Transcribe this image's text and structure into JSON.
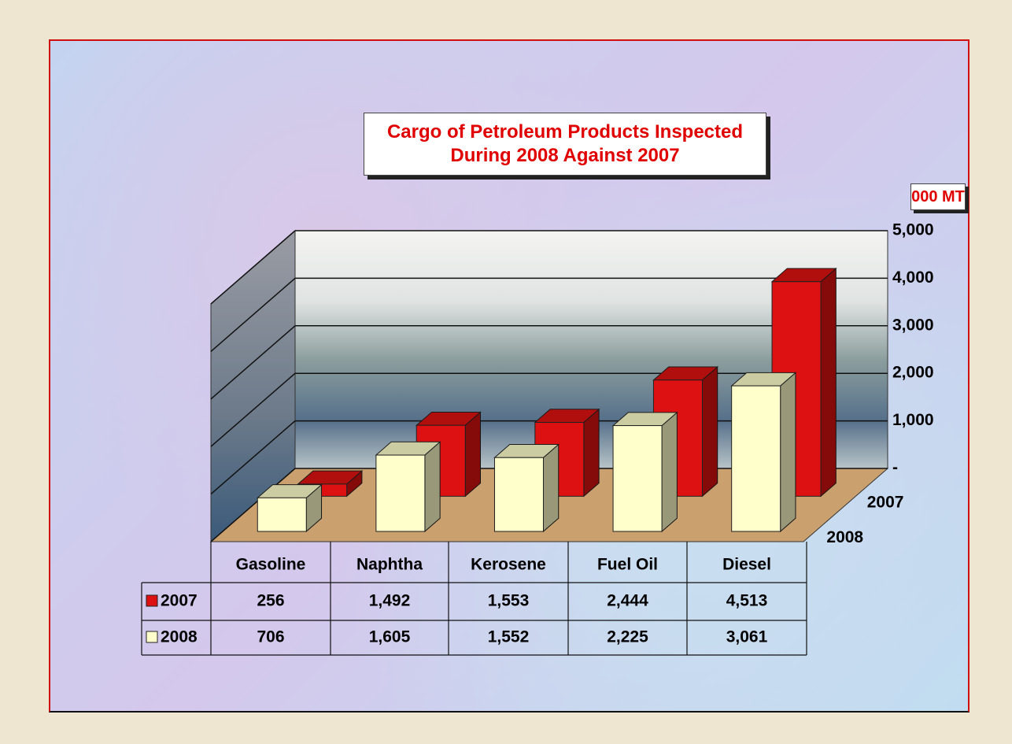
{
  "chart_data": {
    "type": "bar3d",
    "title": "Cargo of Petroleum Products Inspected During 2008 Against 2007",
    "y_label": "000 MT",
    "categories": [
      "Gasoline",
      "Naphtha",
      "Kerosene",
      "Fuel Oil",
      "Diesel"
    ],
    "series": [
      {
        "name": "2007",
        "color": "#dd1111",
        "values": [
          256,
          1492,
          1553,
          2444,
          4513
        ],
        "value_labels": [
          "256",
          "1,492",
          "1,553",
          "2,444",
          "4,513"
        ]
      },
      {
        "name": "2008",
        "color": "#ffffcc",
        "values": [
          706,
          1605,
          1552,
          2225,
          3061
        ],
        "value_labels": [
          "706",
          "1,605",
          "1,552",
          "2,225",
          "3,061"
        ]
      }
    ],
    "ylim": [
      0,
      5000
    ],
    "yticks": [
      {
        "value": 0,
        "label": "-"
      },
      {
        "value": 1000,
        "label": "1,000"
      },
      {
        "value": 2000,
        "label": "2,000"
      },
      {
        "value": 3000,
        "label": "3,000"
      },
      {
        "value": 4000,
        "label": "4,000"
      },
      {
        "value": 5000,
        "label": "5,000"
      }
    ],
    "grid": true
  }
}
